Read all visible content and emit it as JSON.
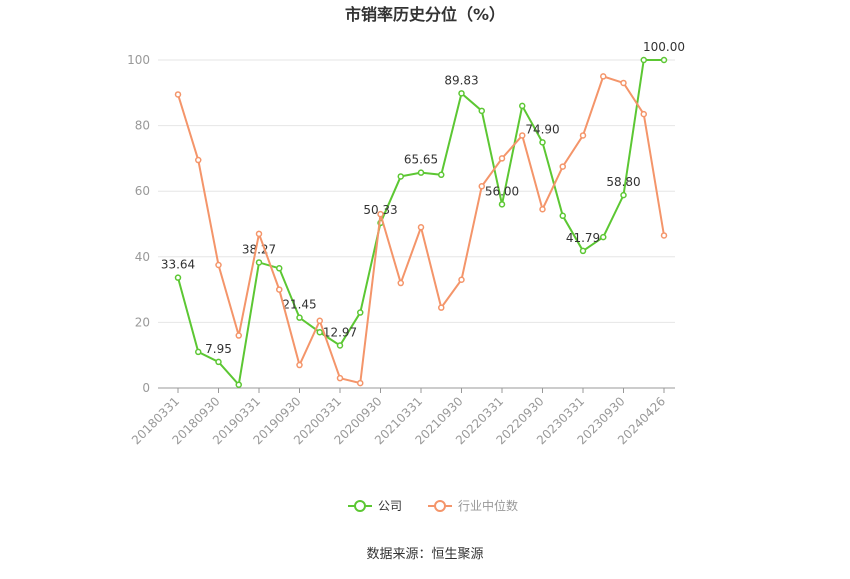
{
  "chart_data": {
    "type": "line",
    "title": "市销率历史分位（%）",
    "source": "数据来源：恒生聚源",
    "categories": [
      "20180331",
      null,
      "20180930",
      null,
      "20190331",
      null,
      "20190930",
      null,
      "20200331",
      null,
      "20200930",
      null,
      "20210331",
      null,
      "20210930",
      null,
      "20220331",
      null,
      "20220930",
      null,
      "20230331",
      null,
      "20230930",
      null,
      "20240426"
    ],
    "ylim": [
      0,
      100
    ],
    "yticks": [
      0,
      20,
      40,
      60,
      80,
      100
    ],
    "grid": true,
    "legend": "bottom",
    "series": [
      {
        "name": "公司",
        "color": "#5cc733",
        "values": [
          33.64,
          11,
          7.95,
          1,
          38.27,
          36.5,
          21.45,
          17,
          12.97,
          23,
          50.33,
          64.5,
          65.65,
          65,
          89.83,
          84.5,
          56.0,
          86,
          74.9,
          52.5,
          41.79,
          46,
          58.8,
          100,
          100.0
        ],
        "value_labels": [
          "33.64",
          null,
          "7.95",
          null,
          "38.27",
          null,
          "21.45",
          null,
          "12.97",
          null,
          "50.33",
          null,
          "65.65",
          null,
          "89.83",
          null,
          "56.00",
          null,
          "74.90",
          null,
          "41.79",
          null,
          "58.80",
          null,
          "100.00"
        ]
      },
      {
        "name": "行业中位数",
        "color": "#f4956a",
        "values": [
          89.5,
          69.5,
          37.5,
          16,
          47,
          30,
          7,
          20.5,
          3,
          1.5,
          53,
          32,
          49,
          24.5,
          33,
          61.5,
          70,
          77,
          54.5,
          67.5,
          77,
          95,
          93,
          83.5,
          46.5
        ]
      }
    ]
  }
}
